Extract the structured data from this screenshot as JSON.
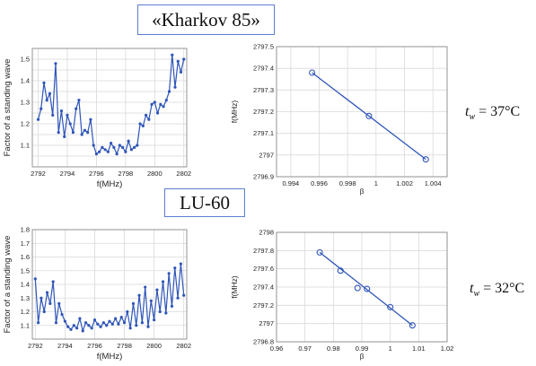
{
  "labels": {
    "kharkov": "«Kharkov 85»",
    "lu60": "LU-60"
  },
  "temperatures": [
    {
      "t": "t",
      "sub": "w",
      "value": " = 37°C"
    },
    {
      "t": "t",
      "sub": "w",
      "value": " = 32°C"
    }
  ],
  "colors": {
    "line": "#2f55b8",
    "grid": "#d9d9d9",
    "frame": "#8a8a8a",
    "box_border": "#5b7fcf"
  },
  "chart_data": [
    {
      "id": "swr_top",
      "type": "line",
      "xlabel": "f(MHz)",
      "ylabel": "Factor of a standing wave",
      "xlim": [
        2791.6,
        2802.2
      ],
      "ylim": [
        1.0,
        1.55
      ],
      "xticks": [
        2792,
        2794,
        2796,
        2798,
        2800,
        2802
      ],
      "yticks": [
        1.05,
        1.1,
        1.15,
        1.2,
        1.25,
        1.3,
        1.35,
        1.4,
        1.45,
        1.5
      ],
      "ytick_labels": [
        "",
        "1.1",
        "",
        "1.2",
        "",
        "1.3",
        "",
        "1.4",
        "",
        "1.5"
      ],
      "grid": true,
      "series": [
        {
          "x": [
            2792.0,
            2792.2,
            2792.4,
            2792.6,
            2792.8,
            2793.0,
            2793.2,
            2793.4,
            2793.6,
            2793.8,
            2794.0,
            2794.2,
            2794.4,
            2794.6,
            2794.8,
            2795.0,
            2795.2,
            2795.4,
            2795.6,
            2795.8,
            2796.0,
            2796.2,
            2796.4,
            2796.6,
            2796.8,
            2797.0,
            2797.2,
            2797.4,
            2797.6,
            2797.8,
            2798.0,
            2798.2,
            2798.4,
            2798.6,
            2798.8,
            2799.0,
            2799.2,
            2799.4,
            2799.6,
            2799.8,
            2800.0,
            2800.2,
            2800.4,
            2800.6,
            2800.8,
            2801.0,
            2801.2,
            2801.4,
            2801.6,
            2801.8,
            2802.0
          ],
          "values": [
            1.22,
            1.27,
            1.39,
            1.31,
            1.34,
            1.24,
            1.48,
            1.16,
            1.26,
            1.14,
            1.24,
            1.2,
            1.16,
            1.27,
            1.31,
            1.15,
            1.17,
            1.16,
            1.22,
            1.1,
            1.06,
            1.07,
            1.09,
            1.08,
            1.07,
            1.11,
            1.09,
            1.06,
            1.1,
            1.09,
            1.07,
            1.12,
            1.08,
            1.09,
            1.1,
            1.2,
            1.19,
            1.24,
            1.22,
            1.29,
            1.3,
            1.25,
            1.29,
            1.28,
            1.31,
            1.35,
            1.52,
            1.37,
            1.49,
            1.44,
            1.5
          ]
        }
      ]
    },
    {
      "id": "freq_top",
      "type": "line",
      "xlabel": "β",
      "ylabel": "f(MHz)",
      "xlim": [
        0.993,
        1.005
      ],
      "ylim": [
        2796.9,
        2797.5
      ],
      "xticks": [
        0.994,
        0.996,
        0.998,
        1.0,
        1.002,
        1.004
      ],
      "xtick_labels": [
        "0.994",
        "0.996",
        "0.998",
        "1",
        "1.002",
        "1.004"
      ],
      "yticks": [
        2796.9,
        2797.0,
        2797.1,
        2797.2,
        2797.3,
        2797.4,
        2797.5
      ],
      "ytick_labels": [
        "2796.9",
        "2797",
        "2797.1",
        "2797.2",
        "2797.3",
        "2797.4",
        "2797.5"
      ],
      "grid": true,
      "markers": [
        [
          0.9955,
          2797.38
        ],
        [
          0.9995,
          2797.18
        ],
        [
          1.0035,
          2796.98
        ]
      ],
      "line": [
        [
          0.9955,
          2797.38
        ],
        [
          1.0035,
          2796.98
        ]
      ]
    },
    {
      "id": "swr_bottom",
      "type": "line",
      "xlabel": "f(MHz)",
      "ylabel": "Factor of a standing wave",
      "xlim": [
        2791.8,
        2802.2
      ],
      "ylim": [
        1.0,
        1.8
      ],
      "xticks": [
        2792,
        2794,
        2796,
        2798,
        2800,
        2802
      ],
      "yticks": [
        1.1,
        1.2,
        1.3,
        1.4,
        1.5,
        1.6,
        1.7,
        1.8
      ],
      "ytick_labels": [
        "1.1",
        "1.2",
        "1.3",
        "1.4",
        "1.5",
        "1.6",
        "1.7",
        "1.8"
      ],
      "grid": true,
      "series": [
        {
          "x": [
            2792.0,
            2792.2,
            2792.4,
            2792.6,
            2792.8,
            2793.0,
            2793.2,
            2793.4,
            2793.6,
            2793.8,
            2794.0,
            2794.2,
            2794.4,
            2794.6,
            2794.8,
            2795.0,
            2795.2,
            2795.4,
            2795.6,
            2795.8,
            2796.0,
            2796.2,
            2796.4,
            2796.6,
            2796.8,
            2797.0,
            2797.2,
            2797.4,
            2797.6,
            2797.8,
            2798.0,
            2798.2,
            2798.4,
            2798.6,
            2798.8,
            2799.0,
            2799.2,
            2799.4,
            2799.6,
            2799.8,
            2800.0,
            2800.2,
            2800.4,
            2800.6,
            2800.8,
            2801.0,
            2801.2,
            2801.4,
            2801.6,
            2801.8,
            2802.0
          ],
          "values": [
            1.44,
            1.12,
            1.3,
            1.2,
            1.34,
            1.26,
            1.42,
            1.12,
            1.26,
            1.18,
            1.13,
            1.09,
            1.07,
            1.1,
            1.08,
            1.15,
            1.06,
            1.12,
            1.1,
            1.08,
            1.14,
            1.11,
            1.09,
            1.12,
            1.1,
            1.13,
            1.11,
            1.15,
            1.11,
            1.16,
            1.12,
            1.2,
            1.08,
            1.26,
            1.1,
            1.32,
            1.12,
            1.38,
            1.09,
            1.28,
            1.14,
            1.36,
            1.2,
            1.42,
            1.19,
            1.48,
            1.24,
            1.52,
            1.3,
            1.55,
            1.32
          ]
        }
      ]
    },
    {
      "id": "freq_bottom",
      "type": "line",
      "xlabel": "β",
      "ylabel": "f(MHz)",
      "xlim": [
        0.96,
        1.02
      ],
      "ylim": [
        2796.8,
        2798.0
      ],
      "xticks": [
        0.96,
        0.97,
        0.98,
        0.99,
        1.0,
        1.01,
        1.02
      ],
      "xtick_labels": [
        "0.96",
        "0.97",
        "0.98",
        "0.99",
        "1",
        "1.01",
        "1.02"
      ],
      "yticks": [
        2796.8,
        2797.0,
        2797.2,
        2797.4,
        2797.6,
        2797.8,
        2798.0
      ],
      "ytick_labels": [
        "2796.8",
        "2797",
        "2797.2",
        "2797.4",
        "2797.6",
        "2797.8",
        "2798"
      ],
      "grid": true,
      "markers": [
        [
          0.9752,
          2797.78
        ],
        [
          0.9825,
          2797.58
        ],
        [
          0.9885,
          2797.39
        ],
        [
          0.9918,
          2797.38
        ],
        [
          1.0,
          2797.18
        ],
        [
          1.0078,
          2796.98
        ]
      ],
      "line": [
        [
          0.9752,
          2797.78
        ],
        [
          1.0078,
          2796.98
        ]
      ]
    }
  ]
}
